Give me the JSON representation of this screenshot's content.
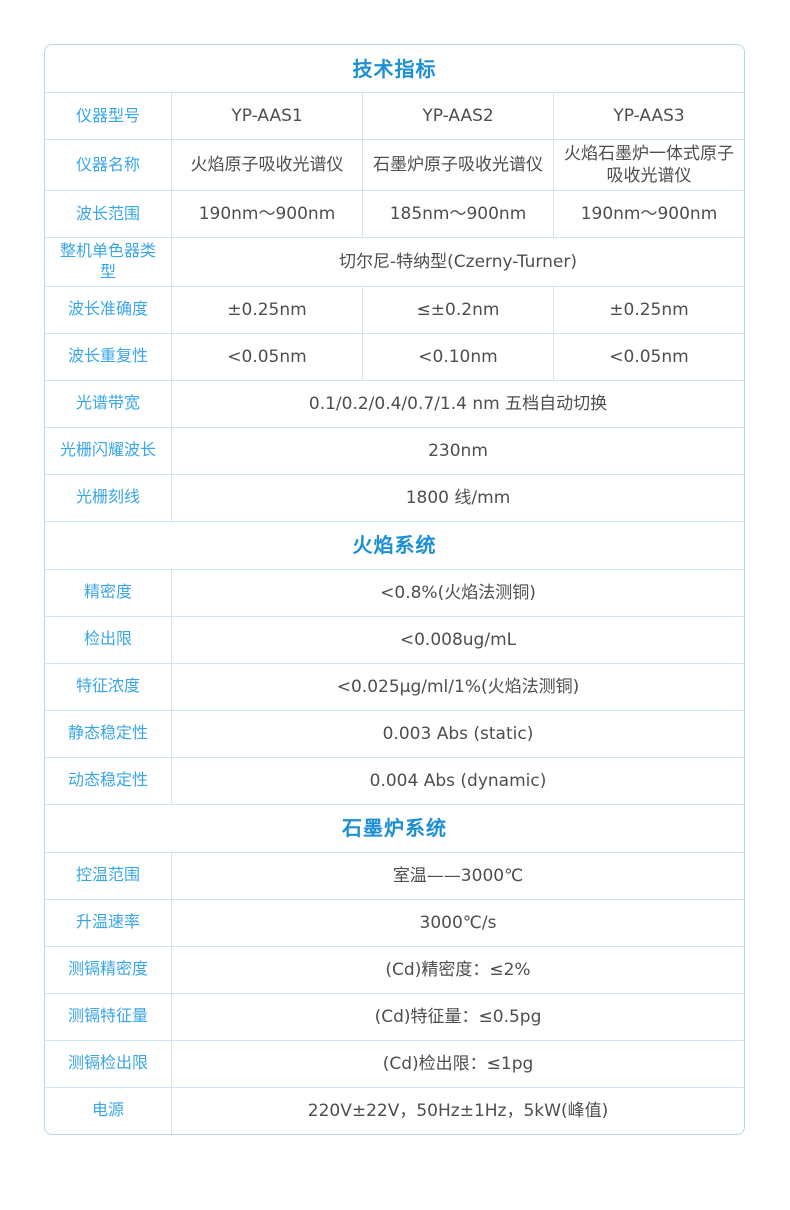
{
  "colors": {
    "section_title": "#1e8fd4",
    "row_label": "#3aa5e9",
    "value_text": "#4e4e4e",
    "grid_line": "#d0e4f3",
    "outer_border": "#b5d6ec",
    "background": "#ffffff"
  },
  "table": {
    "main_title": "技术指标",
    "spec_rows": [
      {
        "label": "仪器型号",
        "values": [
          "YP-AAS1",
          "YP-AAS2",
          "YP-AAS3"
        ]
      },
      {
        "label": "仪器名称",
        "values": [
          "火焰原子吸收光谱仪",
          "石墨炉原子吸收光谱仪",
          "火焰石墨炉一体式原子吸收光谱仪"
        ]
      },
      {
        "label": "波长范围",
        "values": [
          "190nm～900nm",
          "185nm～900nm",
          "190nm～900nm"
        ]
      },
      {
        "label": "整机单色器类型",
        "value": "切尔尼-特纳型(Czerny-Turner)"
      },
      {
        "label": "波长准确度",
        "values": [
          "±0.25nm",
          "≤±0.2nm",
          "±0.25nm"
        ]
      },
      {
        "label": "波长重复性",
        "values": [
          "<0.05nm",
          "<0.10nm",
          "<0.05nm"
        ]
      },
      {
        "label": "光谱带宽",
        "value": "0.1/0.2/0.4/0.7/1.4 nm 五档自动切换"
      },
      {
        "label": "光栅闪耀波长",
        "value": "230nm"
      },
      {
        "label": "光栅刻线",
        "value": "1800 线/mm"
      }
    ],
    "flame_section_title": "火焰系统",
    "flame_rows": [
      {
        "label": "精密度",
        "value": "<0.8%(火焰法测铜)"
      },
      {
        "label": "检出限",
        "value": "<0.008ug/mL"
      },
      {
        "label": "特征浓度",
        "value": "<0.025μg/ml/1%(火焰法测铜)"
      },
      {
        "label": "静态稳定性",
        "value": "0.003 Abs (static)"
      },
      {
        "label": "动态稳定性",
        "value": "0.004 Abs (dynamic)"
      }
    ],
    "furnace_section_title": "石墨炉系统",
    "furnace_rows": [
      {
        "label": "控温范围",
        "value": "室温——3000℃"
      },
      {
        "label": "升温速率",
        "value": "3000℃/s"
      },
      {
        "label": "测镉精密度",
        "value": "(Cd)精密度：≤2%"
      },
      {
        "label": "测镉特征量",
        "value": "(Cd)特征量：≤0.5pg"
      },
      {
        "label": "测镉检出限",
        "value": "(Cd)检出限：≤1pg"
      },
      {
        "label": "电源",
        "value": "220V±22V，50Hz±1Hz，5kW(峰值)"
      }
    ]
  }
}
